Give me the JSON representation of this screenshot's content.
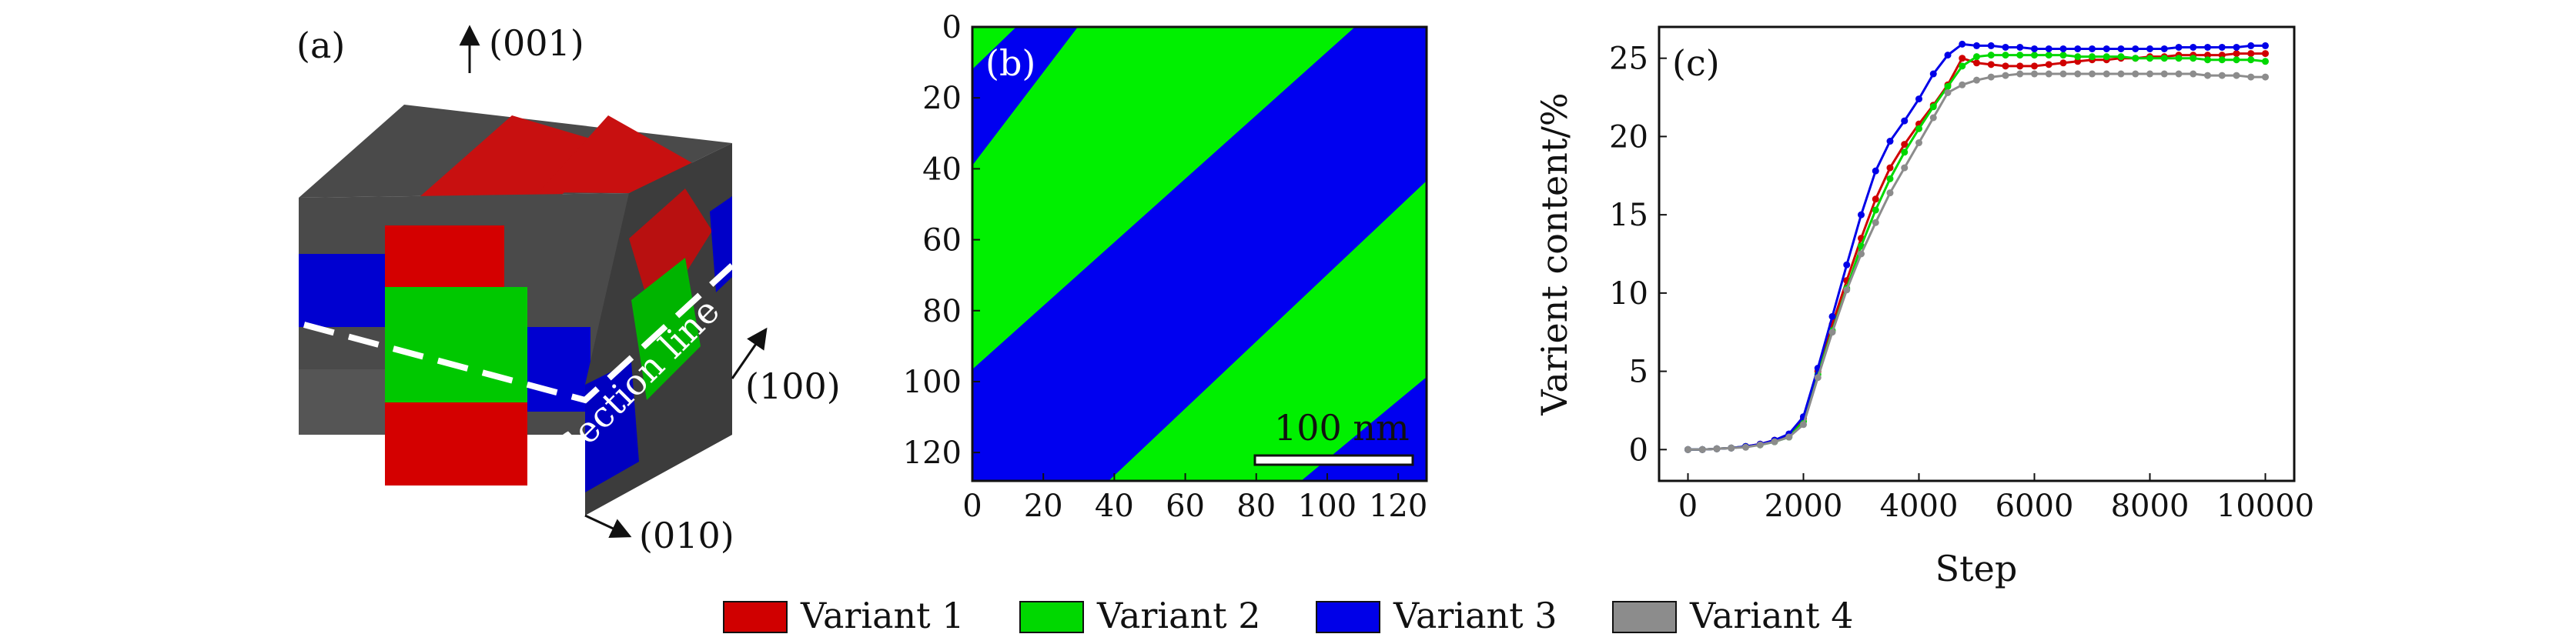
{
  "colors": {
    "variant1": "#d00000",
    "variant2": "#00d800",
    "variant3": "#0000e8",
    "variant4": "#8c8c8c",
    "dark_face": "#444444"
  },
  "panel_a": {
    "label": "(a)",
    "axis_001": "(001)",
    "axis_100": "(100)",
    "axis_010": "(010)",
    "section_label": "Section line"
  },
  "panel_b": {
    "label": "(b)",
    "scale_bar_text": "100 nm",
    "xlim": [
      0,
      128
    ],
    "ylim": [
      0,
      128
    ],
    "x_ticks": [
      "0",
      "20",
      "40",
      "60",
      "80",
      "100",
      "120"
    ],
    "y_ticks": [
      "0",
      "20",
      "40",
      "60",
      "80",
      "100",
      "120"
    ]
  },
  "chart_data": {
    "type": "line",
    "label": "(c)",
    "xlabel": "Step",
    "ylabel": "Varient content/%",
    "xlim": [
      -500,
      10500
    ],
    "ylim": [
      -2,
      27
    ],
    "x_ticks": [
      "0",
      "2000",
      "4000",
      "6000",
      "8000",
      "10000"
    ],
    "y_ticks": [
      "0",
      "5",
      "10",
      "15",
      "20",
      "25"
    ],
    "x": [
      0,
      250,
      500,
      750,
      1000,
      1250,
      1500,
      1750,
      2000,
      2250,
      2500,
      2750,
      3000,
      3250,
      3500,
      3750,
      4000,
      4250,
      4500,
      4750,
      5000,
      5250,
      5500,
      5750,
      6000,
      6250,
      6500,
      6750,
      7000,
      7250,
      7500,
      7750,
      8000,
      8250,
      8500,
      8750,
      9000,
      9250,
      9500,
      9750,
      10000
    ],
    "series": [
      {
        "name": "Variant 1",
        "color_key": "variant1",
        "values": [
          0,
          0,
          0.05,
          0.1,
          0.2,
          0.35,
          0.6,
          0.9,
          2.0,
          5.0,
          8.0,
          10.8,
          13.5,
          16.0,
          18.0,
          19.5,
          20.8,
          22.0,
          23.3,
          25.0,
          24.7,
          24.6,
          24.5,
          24.5,
          24.5,
          24.6,
          24.7,
          24.8,
          24.9,
          24.9,
          25.0,
          25.0,
          25.1,
          25.1,
          25.2,
          25.2,
          25.2,
          25.2,
          25.3,
          25.3,
          25.3
        ]
      },
      {
        "name": "Variant 2",
        "color_key": "variant2",
        "values": [
          0,
          0,
          0.05,
          0.1,
          0.2,
          0.3,
          0.5,
          0.8,
          1.8,
          4.8,
          7.6,
          10.3,
          13.0,
          15.3,
          17.3,
          19.0,
          20.5,
          21.9,
          23.2,
          24.5,
          25.1,
          25.2,
          25.2,
          25.2,
          25.2,
          25.2,
          25.2,
          25.1,
          25.1,
          25.1,
          25.1,
          25.0,
          25.0,
          25.0,
          25.0,
          25.0,
          24.9,
          24.9,
          24.9,
          24.9,
          24.8
        ]
      },
      {
        "name": "Variant 3",
        "color_key": "variant3",
        "values": [
          0,
          0,
          0.05,
          0.1,
          0.2,
          0.35,
          0.6,
          1.0,
          2.1,
          5.2,
          8.5,
          11.8,
          15.0,
          17.8,
          19.7,
          21.0,
          22.4,
          24.0,
          25.2,
          25.9,
          25.8,
          25.8,
          25.7,
          25.7,
          25.6,
          25.6,
          25.6,
          25.6,
          25.6,
          25.6,
          25.6,
          25.6,
          25.6,
          25.6,
          25.7,
          25.7,
          25.7,
          25.7,
          25.7,
          25.8,
          25.8
        ]
      },
      {
        "name": "Variant 4",
        "color_key": "variant4",
        "values": [
          0,
          0,
          0.05,
          0.1,
          0.15,
          0.3,
          0.5,
          0.8,
          1.6,
          4.6,
          7.5,
          10.2,
          12.5,
          14.5,
          16.4,
          18.0,
          19.6,
          21.2,
          22.8,
          23.3,
          23.6,
          23.8,
          23.9,
          24.0,
          24.0,
          24.0,
          24.0,
          24.0,
          24.0,
          24.0,
          24.0,
          24.0,
          24.0,
          24.0,
          24.0,
          24.0,
          23.9,
          23.9,
          23.9,
          23.8,
          23.8
        ]
      }
    ]
  },
  "legend": [
    {
      "label": "Variant 1",
      "color_key": "variant1"
    },
    {
      "label": "Variant 2",
      "color_key": "variant2"
    },
    {
      "label": "Variant 3",
      "color_key": "variant3"
    },
    {
      "label": "Variant 4",
      "color_key": "variant4"
    }
  ]
}
